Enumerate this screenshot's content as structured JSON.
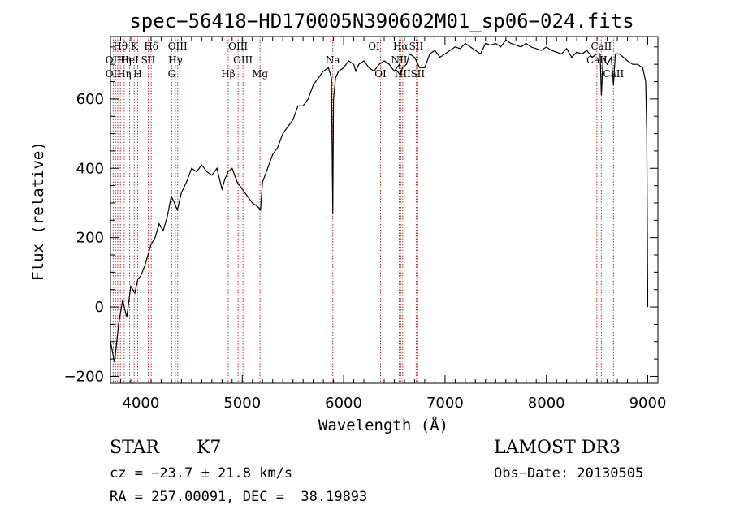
{
  "chart_data": {
    "type": "line",
    "title": "spec−56418−HD170005N390602M01_sp06−024.fits",
    "xlabel": "Wavelength (Å)",
    "ylabel": "Flux (relative)",
    "xlim": [
      3700,
      9100
    ],
    "ylim": [
      -220,
      780
    ],
    "xticks": [
      4000,
      5000,
      6000,
      7000,
      8000,
      9000
    ],
    "xtick_labels": [
      "4000",
      "5000",
      "6000",
      "7000",
      "8000",
      "9000"
    ],
    "yticks": [
      -200,
      0,
      200,
      400,
      600
    ],
    "ytick_labels": [
      "−200",
      "0",
      "200",
      "400",
      "600"
    ],
    "series": [
      {
        "name": "flux",
        "x": [
          3700,
          3740,
          3780,
          3820,
          3860,
          3900,
          3940,
          3970,
          4000,
          4040,
          4080,
          4100,
          4140,
          4180,
          4220,
          4260,
          4300,
          4330,
          4360,
          4400,
          4450,
          4500,
          4550,
          4600,
          4650,
          4700,
          4750,
          4800,
          4830,
          4860,
          4900,
          4950,
          5000,
          5050,
          5100,
          5150,
          5180,
          5200,
          5250,
          5300,
          5350,
          5400,
          5450,
          5500,
          5550,
          5600,
          5650,
          5700,
          5750,
          5800,
          5850,
          5880,
          5893,
          5900,
          5920,
          5950,
          6000,
          6050,
          6100,
          6120,
          6150,
          6200,
          6250,
          6300,
          6350,
          6400,
          6450,
          6500,
          6550,
          6563,
          6580,
          6620,
          6650,
          6700,
          6750,
          6800,
          6850,
          6900,
          6950,
          7000,
          7050,
          7100,
          7150,
          7200,
          7250,
          7300,
          7350,
          7400,
          7450,
          7500,
          7550,
          7600,
          7650,
          7700,
          7750,
          7800,
          7850,
          7900,
          7950,
          8000,
          8050,
          8100,
          8150,
          8200,
          8250,
          8300,
          8350,
          8400,
          8450,
          8500,
          8530,
          8542,
          8560,
          8600,
          8640,
          8662,
          8680,
          8720,
          8760,
          8800,
          8850,
          8900,
          8950,
          8980,
          8990,
          9000
        ],
        "y": [
          -100,
          -160,
          -50,
          20,
          -30,
          60,
          40,
          80,
          90,
          120,
          160,
          180,
          200,
          240,
          220,
          260,
          320,
          300,
          280,
          330,
          360,
          400,
          390,
          410,
          390,
          380,
          400,
          340,
          370,
          390,
          400,
          360,
          340,
          320,
          300,
          290,
          280,
          360,
          400,
          440,
          460,
          500,
          520,
          540,
          580,
          580,
          600,
          640,
          660,
          680,
          690,
          660,
          270,
          600,
          660,
          680,
          690,
          710,
          700,
          680,
          700,
          710,
          690,
          680,
          700,
          710,
          700,
          680,
          700,
          670,
          690,
          700,
          730,
          720,
          690,
          690,
          730,
          740,
          720,
          730,
          740,
          750,
          745,
          760,
          750,
          740,
          730,
          760,
          755,
          760,
          750,
          770,
          760,
          755,
          750,
          760,
          750,
          745,
          740,
          750,
          740,
          735,
          730,
          745,
          720,
          735,
          730,
          740,
          720,
          730,
          730,
          610,
          720,
          700,
          720,
          640,
          730,
          730,
          720,
          710,
          700,
          700,
          690,
          650,
          500,
          0
        ]
      }
    ],
    "line_markers": [
      {
        "label": "Hθ",
        "x": 3798,
        "row": 1
      },
      {
        "label": "OII",
        "x": 3727,
        "row": 2
      },
      {
        "label": "OII",
        "x": 3727,
        "row": 3
      },
      {
        "label": "Hη",
        "x": 3835,
        "row": 2
      },
      {
        "label": "Hη",
        "x": 3835,
        "row": 3
      },
      {
        "label": "K",
        "x": 3934,
        "row": 1
      },
      {
        "label": "H",
        "x": 3969,
        "row": 3
      },
      {
        "label": "HeI",
        "x": 3889,
        "row": 2
      },
      {
        "label": "SII",
        "x": 4072,
        "row": 2
      },
      {
        "label": "Hδ",
        "x": 4102,
        "row": 1
      },
      {
        "label": "OIII",
        "x": 4363,
        "row": 1
      },
      {
        "label": "Hγ",
        "x": 4340,
        "row": 2
      },
      {
        "label": "G",
        "x": 4304,
        "row": 3
      },
      {
        "label": "OIII",
        "x": 4959,
        "row": 1
      },
      {
        "label": "OIII",
        "x": 5007,
        "row": 2
      },
      {
        "label": "Hβ",
        "x": 4861,
        "row": 3
      },
      {
        "label": "Mg",
        "x": 5175,
        "row": 3
      },
      {
        "label": "Na",
        "x": 5893,
        "row": 2
      },
      {
        "label": "OI",
        "x": 6300,
        "row": 1
      },
      {
        "label": "OI",
        "x": 6364,
        "row": 3
      },
      {
        "label": "Hα",
        "x": 6563,
        "row": 1
      },
      {
        "label": "SII",
        "x": 6716,
        "row": 1
      },
      {
        "label": "NII",
        "x": 6548,
        "row": 2
      },
      {
        "label": "NII",
        "x": 6583,
        "row": 3
      },
      {
        "label": "SII",
        "x": 6731,
        "row": 3
      },
      {
        "label": "CaII",
        "x": 8542,
        "row": 1
      },
      {
        "label": "CaII",
        "x": 8498,
        "row": 2
      },
      {
        "label": "CaII",
        "x": 8662,
        "row": 3
      }
    ],
    "marker_lines_x": [
      3727,
      3750,
      3771,
      3798,
      3835,
      3889,
      3934,
      3969,
      4072,
      4102,
      4304,
      4340,
      4363,
      4861,
      4959,
      5007,
      5175,
      5893,
      6300,
      6364,
      6548,
      6563,
      6583,
      6716,
      6731,
      8498,
      8542,
      8662
    ]
  },
  "info": {
    "object_class": "STAR",
    "subclass": "K7",
    "survey": "LAMOST DR3",
    "cz_label": "cz = −23.7 ± 21.8 km/s",
    "obs_date": "Obs−Date: 20130505",
    "coords": "RA = 257.00091, DEC =  38.19893"
  },
  "colors": {
    "spectrum": "#000000",
    "marker_line": "#cc2222",
    "axis": "#000000"
  }
}
